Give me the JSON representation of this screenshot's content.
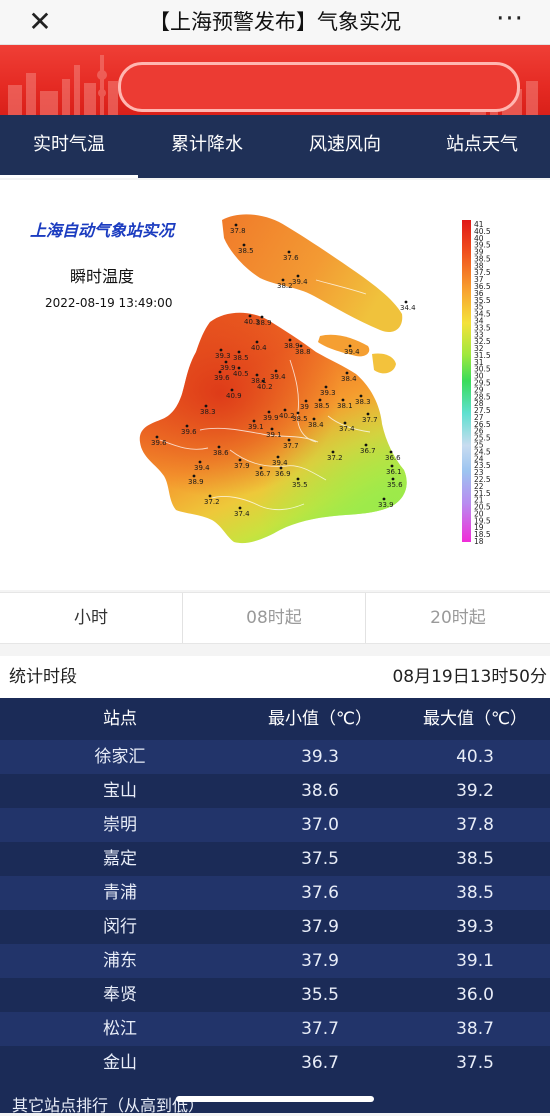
{
  "topbar": {
    "close_glyph": "✕",
    "title": "【上海预警发布】气象实况",
    "more_glyph": "···"
  },
  "tabs": [
    {
      "label": "实时气温",
      "active": true
    },
    {
      "label": "累计降水",
      "active": false
    },
    {
      "label": "风速风向",
      "active": false
    },
    {
      "label": "站点天气",
      "active": false
    }
  ],
  "map": {
    "title": "上海自动气象站实况",
    "subtitle": "瞬时温度",
    "timestamp": "2022-08-19 13:49:00",
    "legend_ticks": [
      "41",
      "40.5",
      "40",
      "39.5",
      "39",
      "38.5",
      "38",
      "37.5",
      "37",
      "36.5",
      "36",
      "35.5",
      "35",
      "34.5",
      "34",
      "33.5",
      "33",
      "32.5",
      "32",
      "31.5",
      "31",
      "30.5",
      "30",
      "29.5",
      "29",
      "28.5",
      "28",
      "27.5",
      "27",
      "26.5",
      "26",
      "25.5",
      "25",
      "24.5",
      "24",
      "23.5",
      "23",
      "22.5",
      "22",
      "21.5",
      "21",
      "20.5",
      "20",
      "19.5",
      "19",
      "18.5",
      "18"
    ],
    "stations": [
      {
        "label": "37.8"
      },
      {
        "label": "38.5"
      },
      {
        "label": "37.6"
      },
      {
        "label": "38.2"
      },
      {
        "label": "39.4"
      },
      {
        "label": "34.4"
      },
      {
        "label": "40.3"
      },
      {
        "label": "38.9"
      },
      {
        "label": "40.4"
      },
      {
        "label": "38.9"
      },
      {
        "label": "38.8"
      },
      {
        "label": "39.4"
      },
      {
        "label": "39.3"
      },
      {
        "label": "38.5"
      },
      {
        "label": "39.9"
      },
      {
        "label": "40.5"
      },
      {
        "label": "39.6"
      },
      {
        "label": "38.1"
      },
      {
        "label": "40.2"
      },
      {
        "label": "39.4"
      },
      {
        "label": "38.4"
      },
      {
        "label": "40.9"
      },
      {
        "label": "39.3"
      },
      {
        "label": "38.5"
      },
      {
        "label": "38.1"
      },
      {
        "label": "38.3"
      },
      {
        "label": "38.3"
      },
      {
        "label": "39"
      },
      {
        "label": "40.2"
      },
      {
        "label": "39.9"
      },
      {
        "label": "38.5"
      },
      {
        "label": "38.4"
      },
      {
        "label": "37.7"
      },
      {
        "label": "39.6"
      },
      {
        "label": "39.1"
      },
      {
        "label": "39.1"
      },
      {
        "label": "37.4"
      },
      {
        "label": "39.6"
      },
      {
        "label": "37.7"
      },
      {
        "label": "36.7"
      },
      {
        "label": "39.4"
      },
      {
        "label": "38.6"
      },
      {
        "label": "37.2"
      },
      {
        "label": "36.6"
      },
      {
        "label": "37.9"
      },
      {
        "label": "39.4"
      },
      {
        "label": "36.7"
      },
      {
        "label": "36.9"
      },
      {
        "label": "36.1"
      },
      {
        "label": "38.9"
      },
      {
        "label": "35.5"
      },
      {
        "label": "35.6"
      },
      {
        "label": "37.2"
      },
      {
        "label": "37.4"
      },
      {
        "label": "33.9"
      }
    ]
  },
  "segments": [
    {
      "label": "小时",
      "active": true
    },
    {
      "label": "08时起",
      "active": false
    },
    {
      "label": "20时起",
      "active": false
    }
  ],
  "stats": {
    "period_label": "统计时段",
    "period_value": "08月19日13时50分",
    "headers": [
      "站点",
      "最小值（℃）",
      "最大值（℃）"
    ],
    "rows": [
      [
        "徐家汇",
        "39.3",
        "40.3"
      ],
      [
        "宝山",
        "38.6",
        "39.2"
      ],
      [
        "崇明",
        "37.0",
        "37.8"
      ],
      [
        "嘉定",
        "37.5",
        "38.5"
      ],
      [
        "青浦",
        "37.6",
        "38.5"
      ],
      [
        "闵行",
        "37.9",
        "39.3"
      ],
      [
        "浦东",
        "37.9",
        "39.1"
      ],
      [
        "奉贤",
        "35.5",
        "36.0"
      ],
      [
        "松江",
        "37.7",
        "38.7"
      ],
      [
        "金山",
        "36.7",
        "37.5"
      ]
    ],
    "footer": "其它站点排行（从高到低）"
  },
  "colors": {
    "navy": "#1f3057",
    "banner_red": "#e52a23",
    "row_odd": "#22346a",
    "row_even": "#1b2b57",
    "active_segment_text": "#333333",
    "inactive_segment_text": "#9a9a9a"
  }
}
